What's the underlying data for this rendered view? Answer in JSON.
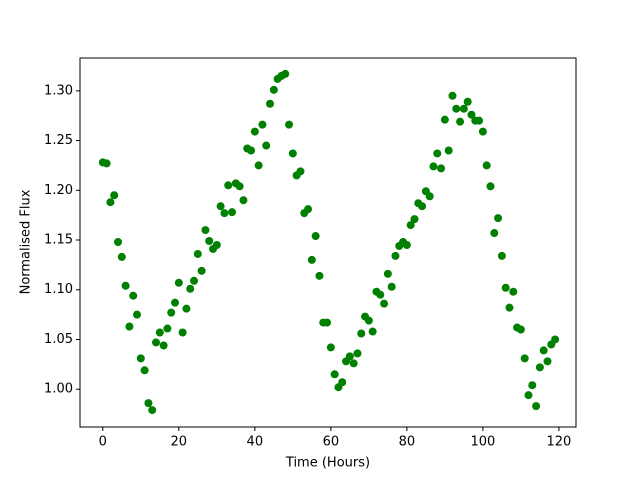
{
  "chart_data": {
    "type": "scatter",
    "x_label": "Time (Hours)",
    "y_label": "Normalised Flux",
    "color": "#008000",
    "x": [
      0,
      1,
      2,
      3,
      4,
      5,
      6,
      7,
      8,
      9,
      10,
      11,
      12,
      13,
      14,
      15,
      16,
      17,
      18,
      19,
      20,
      21,
      22,
      23,
      24,
      25,
      26,
      27,
      28,
      29,
      30,
      31,
      32,
      33,
      34,
      35,
      36,
      37,
      38,
      39,
      40,
      41,
      42,
      43,
      44,
      45,
      46,
      47,
      48,
      49,
      50,
      51,
      52,
      53,
      54,
      55,
      56,
      57,
      58,
      59,
      60,
      61,
      62,
      63,
      64,
      65,
      66,
      67,
      68,
      69,
      70,
      71,
      72,
      73,
      74,
      75,
      76,
      77,
      78,
      79,
      80,
      81,
      82,
      83,
      84,
      85,
      86,
      87,
      88,
      89,
      90,
      91,
      92,
      93,
      94,
      95,
      96,
      97,
      98,
      99,
      100,
      101,
      102,
      103,
      104,
      105,
      106,
      107,
      108,
      109,
      110,
      111,
      112,
      113,
      114,
      115,
      116,
      117,
      118,
      119
    ],
    "values": [
      1.228,
      1.227,
      1.188,
      1.195,
      1.148,
      1.133,
      1.104,
      1.063,
      1.094,
      1.075,
      1.031,
      1.019,
      0.986,
      0.979,
      1.047,
      1.057,
      1.044,
      1.061,
      1.077,
      1.087,
      1.107,
      1.057,
      1.081,
      1.101,
      1.109,
      1.136,
      1.119,
      1.16,
      1.149,
      1.141,
      1.145,
      1.184,
      1.177,
      1.205,
      1.178,
      1.207,
      1.204,
      1.19,
      1.242,
      1.24,
      1.259,
      1.225,
      1.266,
      1.245,
      1.287,
      1.301,
      1.312,
      1.315,
      1.317,
      1.266,
      1.237,
      1.215,
      1.219,
      1.177,
      1.181,
      1.13,
      1.154,
      1.114,
      1.067,
      1.067,
      1.042,
      1.015,
      1.002,
      1.007,
      1.028,
      1.033,
      1.026,
      1.036,
      1.056,
      1.073,
      1.069,
      1.058,
      1.098,
      1.095,
      1.086,
      1.116,
      1.103,
      1.134,
      1.144,
      1.148,
      1.145,
      1.165,
      1.171,
      1.187,
      1.184,
      1.199,
      1.194,
      1.224,
      1.237,
      1.222,
      1.271,
      1.24,
      1.295,
      1.282,
      1.269,
      1.282,
      1.289,
      1.276,
      1.27,
      1.27,
      1.259,
      1.225,
      1.204,
      1.157,
      1.172,
      1.134,
      1.102,
      1.082,
      1.098,
      1.062,
      1.06,
      1.031,
      0.994,
      1.004,
      0.983,
      1.022,
      1.039,
      1.028,
      1.045,
      1.05
    ],
    "xlim": [
      -6,
      124.5
    ],
    "ylim": [
      0.962,
      1.333
    ],
    "xticks": [
      0,
      20,
      40,
      60,
      80,
      100,
      120
    ],
    "yticks": [
      {
        "value": 1.0,
        "label": "1.00"
      },
      1.05,
      {
        "value": 1.1,
        "label": "1.10"
      },
      1.15,
      {
        "value": 1.2,
        "label": "1.20"
      },
      1.25,
      {
        "value": 1.3,
        "label": "1.30"
      }
    ],
    "grid": false
  }
}
